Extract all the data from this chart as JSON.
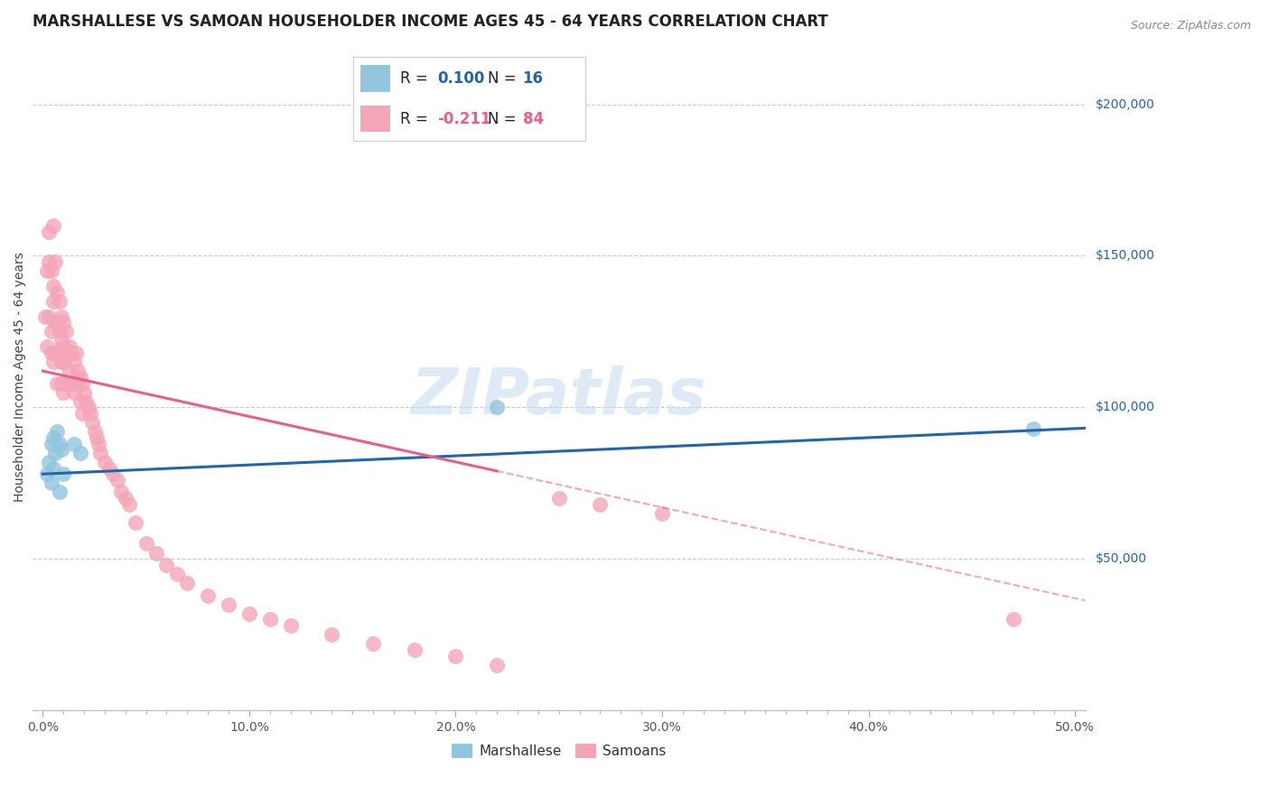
{
  "title": "MARSHALLESE VS SAMOAN HOUSEHOLDER INCOME AGES 45 - 64 YEARS CORRELATION CHART",
  "source": "Source: ZipAtlas.com",
  "xlabel_ticks": [
    "0.0%",
    "",
    "",
    "",
    "",
    "",
    "",
    "",
    "",
    "10.0%",
    "",
    "",
    "",
    "",
    "",
    "",
    "",
    "",
    "",
    "20.0%",
    "",
    "",
    "",
    "",
    "",
    "",
    "",
    "",
    "",
    "30.0%",
    "",
    "",
    "",
    "",
    "",
    "",
    "",
    "",
    "",
    "40.0%",
    "",
    "",
    "",
    "",
    "",
    "",
    "",
    "",
    "",
    "50.0%"
  ],
  "ylabel": "Householder Income Ages 45 - 64 years",
  "ylabel_ticks": [
    "$50,000",
    "$100,000",
    "$150,000",
    "$200,000"
  ],
  "ylabel_vals": [
    50000,
    100000,
    150000,
    200000
  ],
  "ylim": [
    0,
    220000
  ],
  "xlim": [
    -0.005,
    0.505
  ],
  "blue_color": "#92C5DE",
  "pink_color": "#F4A5B8",
  "blue_line_color": "#2166AC",
  "pink_line_color": "#E8608A",
  "watermark": "ZIPatlas",
  "background_color": "#FFFFFF",
  "marshallese_x": [
    0.002,
    0.003,
    0.004,
    0.004,
    0.005,
    0.005,
    0.006,
    0.007,
    0.008,
    0.008,
    0.009,
    0.01,
    0.015,
    0.018,
    0.22,
    0.48
  ],
  "marshallese_y": [
    78000,
    82000,
    75000,
    88000,
    80000,
    90000,
    85000,
    92000,
    72000,
    88000,
    86000,
    78000,
    88000,
    85000,
    100000,
    93000
  ],
  "samoan_x": [
    0.001,
    0.002,
    0.002,
    0.003,
    0.003,
    0.003,
    0.004,
    0.004,
    0.004,
    0.005,
    0.005,
    0.005,
    0.005,
    0.006,
    0.006,
    0.006,
    0.007,
    0.007,
    0.007,
    0.007,
    0.008,
    0.008,
    0.008,
    0.009,
    0.009,
    0.009,
    0.009,
    0.01,
    0.01,
    0.01,
    0.01,
    0.011,
    0.011,
    0.012,
    0.012,
    0.013,
    0.013,
    0.014,
    0.014,
    0.015,
    0.015,
    0.016,
    0.016,
    0.017,
    0.018,
    0.018,
    0.019,
    0.019,
    0.02,
    0.021,
    0.022,
    0.023,
    0.024,
    0.025,
    0.026,
    0.027,
    0.028,
    0.03,
    0.032,
    0.034,
    0.036,
    0.038,
    0.04,
    0.042,
    0.045,
    0.05,
    0.055,
    0.06,
    0.065,
    0.07,
    0.08,
    0.09,
    0.1,
    0.11,
    0.12,
    0.14,
    0.16,
    0.18,
    0.2,
    0.22,
    0.25,
    0.27,
    0.3,
    0.47
  ],
  "samoan_y": [
    130000,
    145000,
    120000,
    148000,
    158000,
    130000,
    145000,
    125000,
    118000,
    160000,
    140000,
    135000,
    115000,
    148000,
    128000,
    118000,
    138000,
    128000,
    118000,
    108000,
    135000,
    125000,
    118000,
    130000,
    122000,
    115000,
    108000,
    128000,
    120000,
    115000,
    105000,
    125000,
    118000,
    118000,
    108000,
    120000,
    112000,
    118000,
    108000,
    115000,
    105000,
    118000,
    108000,
    112000,
    110000,
    102000,
    108000,
    98000,
    105000,
    102000,
    100000,
    98000,
    95000,
    92000,
    90000,
    88000,
    85000,
    82000,
    80000,
    78000,
    76000,
    72000,
    70000,
    68000,
    62000,
    55000,
    52000,
    48000,
    45000,
    42000,
    38000,
    35000,
    32000,
    30000,
    28000,
    25000,
    22000,
    20000,
    18000,
    15000,
    70000,
    68000,
    65000,
    30000
  ],
  "title_fontsize": 12,
  "axis_label_fontsize": 10,
  "tick_fontsize": 10,
  "legend_fontsize": 12,
  "watermark_fontsize": 52,
  "grid_color": "#CCCCCC",
  "blue_line_intercept": 78000,
  "blue_line_slope": 30000,
  "pink_line_intercept": 112000,
  "pink_line_slope": -150000
}
